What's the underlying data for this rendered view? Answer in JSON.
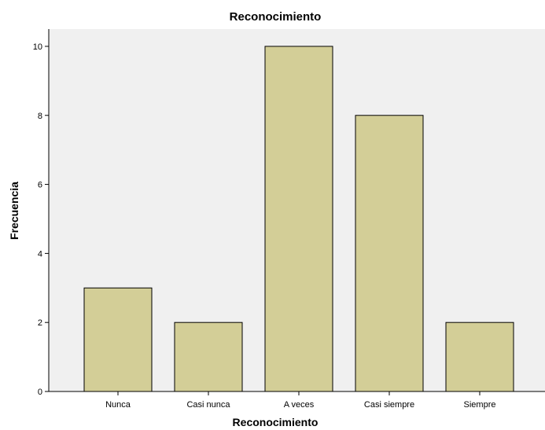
{
  "chart_data": {
    "type": "bar",
    "title": "Reconocimiento",
    "xlabel": "Reconocimiento",
    "ylabel": "Frecuencia",
    "categories": [
      "Nunca",
      "Casi nunca",
      "A veces",
      "Casi siempre",
      "Siempre"
    ],
    "values": [
      3,
      2,
      10,
      8,
      2
    ],
    "ylim": [
      0,
      10.5
    ],
    "yticks": [
      0,
      2,
      4,
      6,
      8,
      10
    ],
    "grid": false,
    "legend": "none",
    "colors": {
      "bar_fill": "#d3ce97",
      "plot_background": "#f0f0f0",
      "page_background": "#ffffff"
    }
  }
}
